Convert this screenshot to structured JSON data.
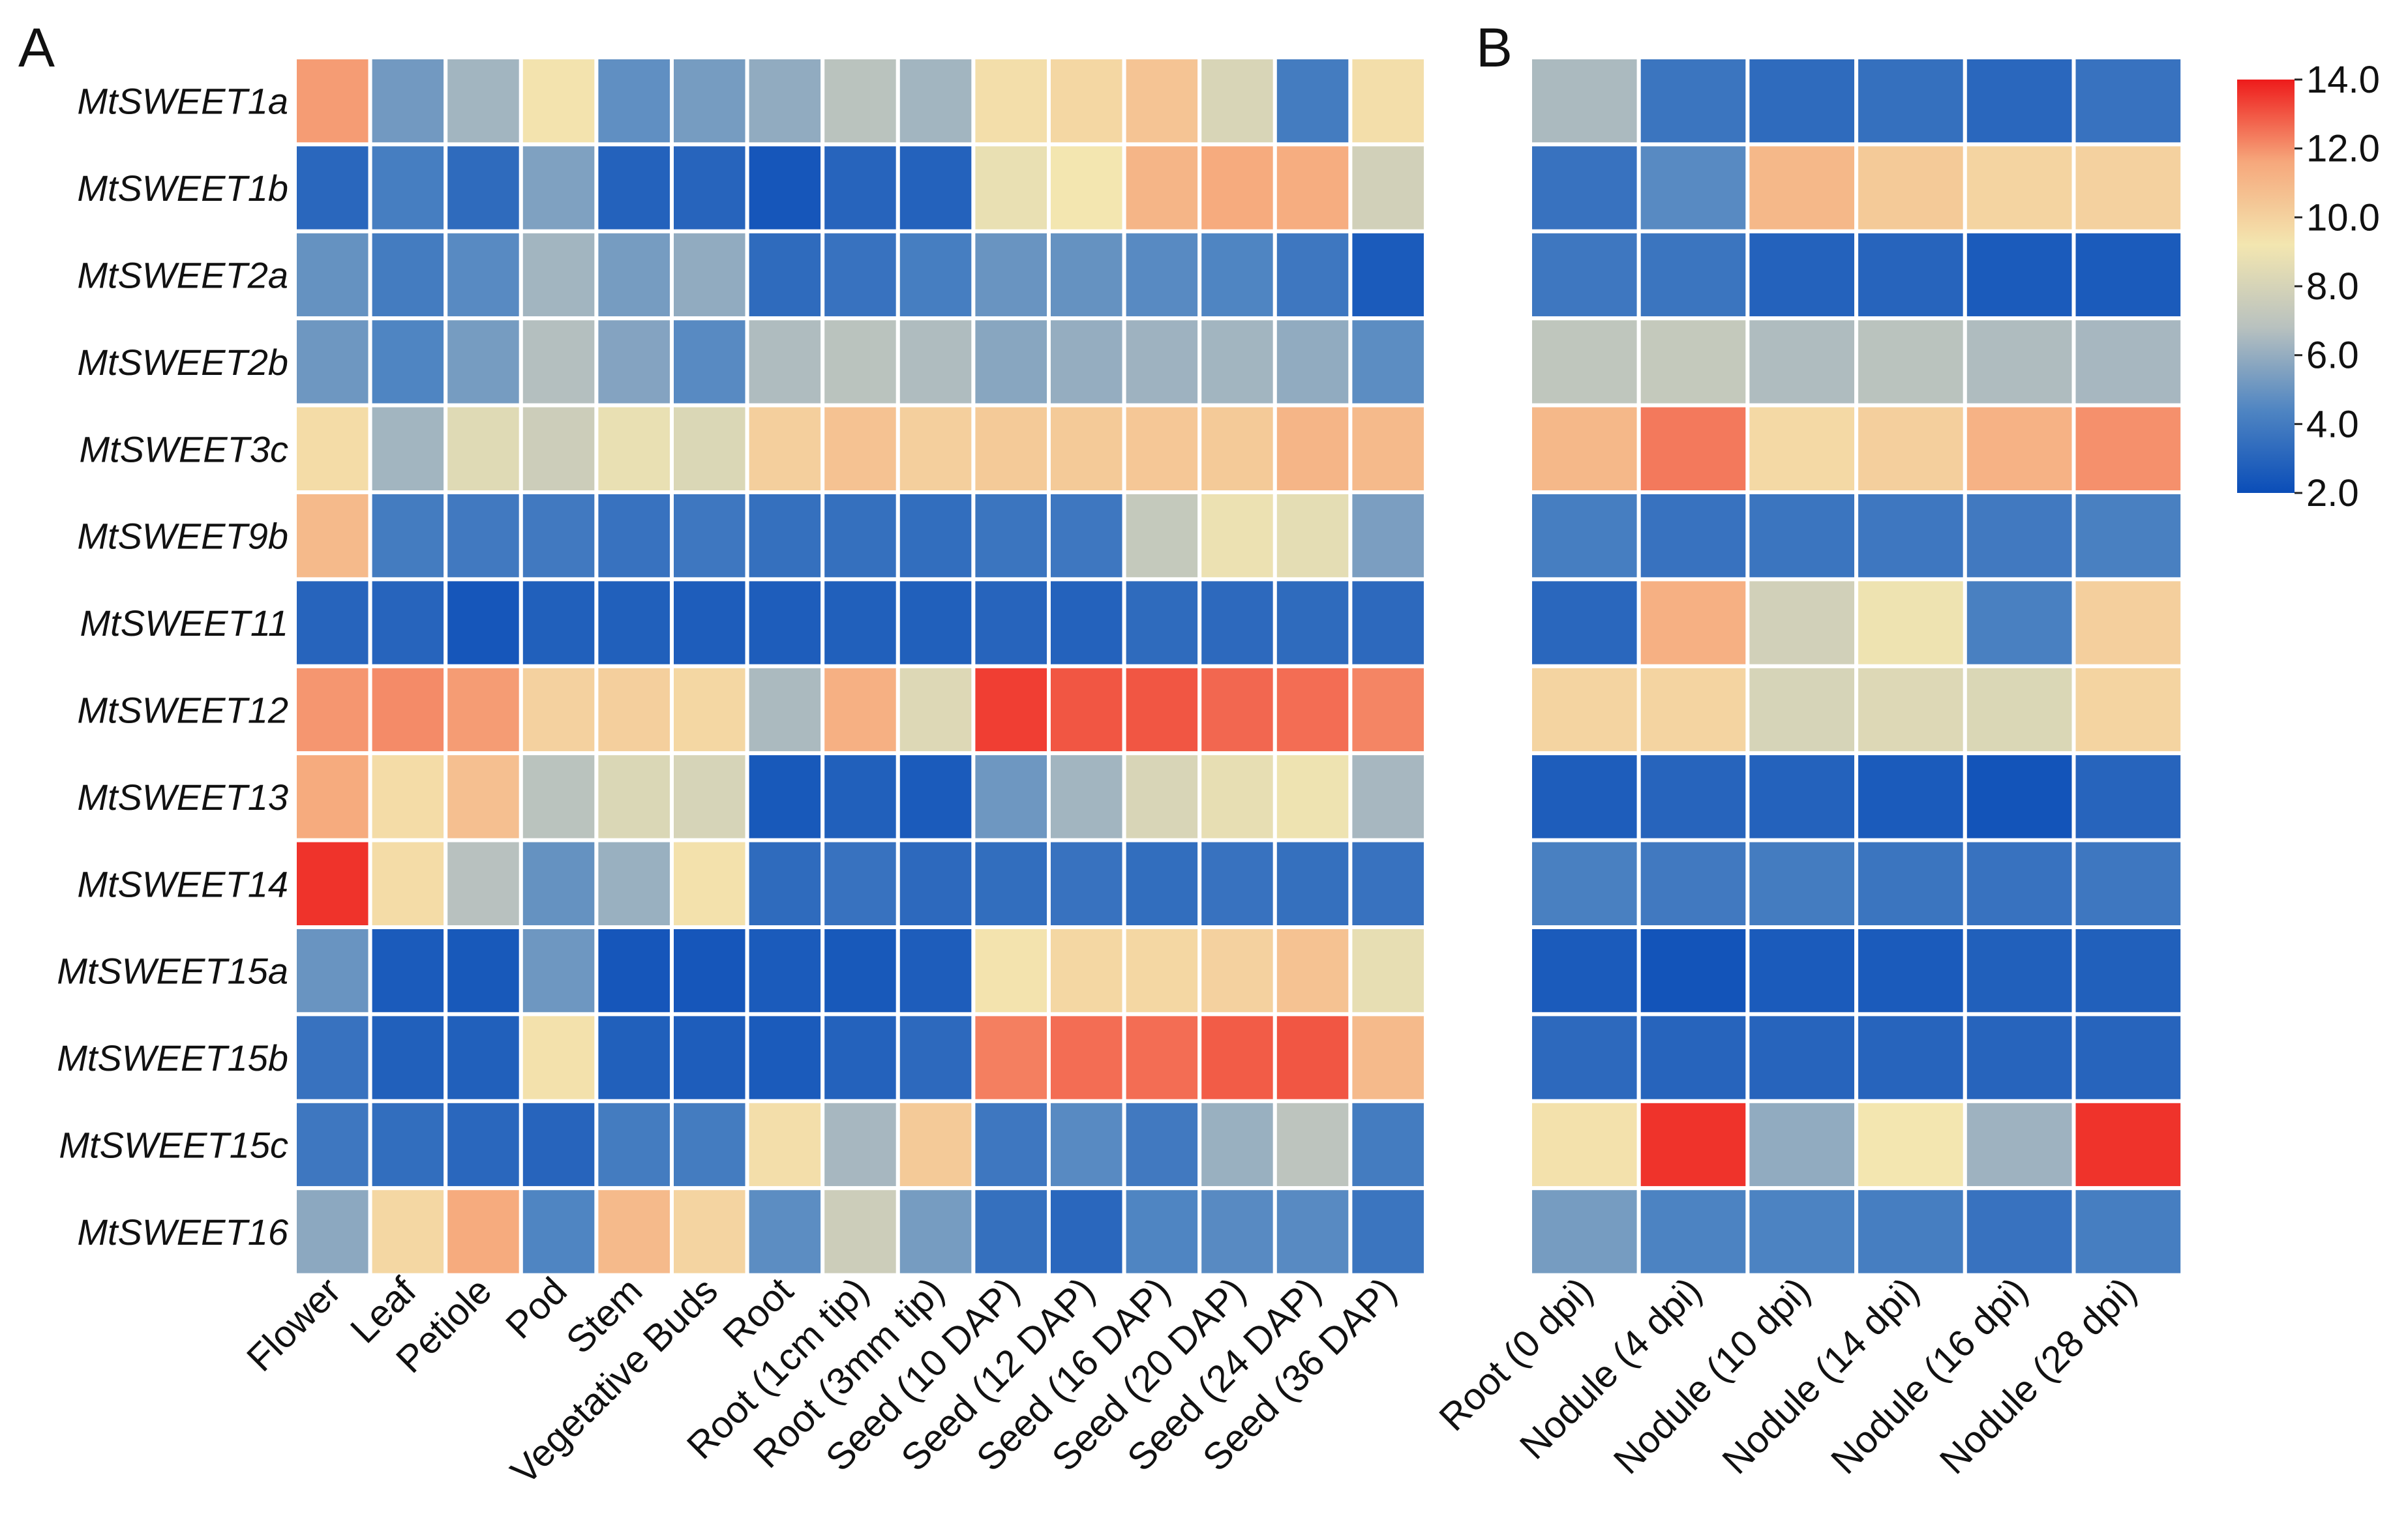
{
  "chart_data": [
    {
      "type": "heatmap",
      "panel": "A",
      "rows": [
        "MtSWEET1a",
        "MtSWEET1b",
        "MtSWEET2a",
        "MtSWEET2b",
        "MtSWEET3c",
        "MtSWEET9b",
        "MtSWEET11",
        "MtSWEET12",
        "MtSWEET13",
        "MtSWEET14",
        "MtSWEET15a",
        "MtSWEET15b",
        "MtSWEET15c",
        "MtSWEET16"
      ],
      "columns": [
        "Flower",
        "Leaf",
        "Petiole",
        "Pod",
        "Stem",
        "Vegetative Buds",
        "Root",
        "Root (1cm tip)",
        "Root (3mm tip)",
        "Seed (10 DAP)",
        "Seed (12 DAP)",
        "Seed (16 DAP)",
        "Seed (20 DAP)",
        "Seed (24 DAP)",
        "Seed (36 DAP)"
      ],
      "values": [
        [
          11.8,
          5.2,
          6.3,
          9.3,
          4.8,
          5.3,
          5.9,
          6.9,
          6.3,
          9.5,
          9.8,
          10.5,
          8.1,
          4.0,
          9.5
        ],
        [
          3.1,
          4.1,
          3.3,
          5.5,
          2.9,
          3.0,
          2.4,
          3.0,
          2.9,
          8.8,
          9.2,
          11.1,
          11.5,
          11.4,
          7.8
        ],
        [
          4.9,
          4.0,
          4.6,
          6.3,
          5.3,
          5.9,
          3.3,
          3.6,
          4.1,
          5.0,
          4.9,
          4.6,
          4.4,
          3.8,
          2.6
        ],
        [
          5.1,
          4.4,
          5.3,
          6.7,
          5.6,
          4.6,
          6.6,
          6.9,
          6.6,
          5.7,
          6.0,
          6.2,
          6.3,
          5.9,
          4.7
        ],
        [
          9.6,
          6.3,
          8.4,
          7.6,
          8.8,
          8.2,
          10.1,
          10.6,
          10.1,
          10.3,
          10.3,
          10.4,
          10.3,
          11.1,
          10.9
        ],
        [
          10.9,
          4.0,
          3.9,
          3.9,
          3.6,
          3.8,
          3.5,
          3.5,
          3.4,
          3.7,
          3.8,
          7.3,
          8.9,
          8.6,
          5.4
        ],
        [
          3.0,
          3.0,
          2.4,
          2.8,
          2.8,
          2.7,
          2.7,
          2.8,
          2.8,
          3.0,
          2.9,
          3.3,
          3.2,
          3.3,
          3.2
        ],
        [
          11.9,
          12.1,
          11.8,
          10.0,
          10.1,
          9.8,
          6.5,
          11.3,
          8.3,
          13.4,
          13.0,
          13.0,
          12.7,
          12.6,
          12.2
        ],
        [
          11.5,
          9.6,
          10.7,
          6.9,
          8.2,
          8.0,
          2.5,
          2.8,
          2.6,
          5.1,
          6.3,
          8.1,
          8.7,
          9.0,
          6.4
        ],
        [
          13.6,
          9.6,
          6.8,
          4.9,
          6.1,
          9.4,
          3.3,
          3.6,
          3.2,
          3.4,
          3.6,
          3.4,
          3.6,
          3.5,
          3.6
        ],
        [
          5.0,
          2.6,
          2.5,
          5.1,
          2.4,
          2.4,
          2.6,
          2.5,
          2.7,
          9.3,
          9.8,
          9.8,
          10.0,
          10.6,
          8.7
        ],
        [
          3.6,
          2.8,
          2.8,
          9.4,
          2.8,
          2.7,
          2.6,
          2.9,
          3.2,
          12.3,
          12.6,
          12.6,
          12.9,
          13.0,
          10.9
        ],
        [
          3.8,
          3.4,
          3.1,
          3.0,
          4.0,
          4.0,
          9.5,
          6.4,
          10.3,
          3.8,
          4.6,
          3.9,
          6.1,
          7.0,
          4.0
        ],
        [
          5.8,
          9.8,
          11.5,
          4.4,
          10.9,
          9.9,
          4.7,
          7.6,
          5.3,
          3.5,
          3.1,
          4.4,
          4.6,
          4.6,
          3.7
        ]
      ]
    },
    {
      "type": "heatmap",
      "panel": "B",
      "rows": [
        "MtSWEET1a",
        "MtSWEET1b",
        "MtSWEET2a",
        "MtSWEET2b",
        "MtSWEET3c",
        "MtSWEET9b",
        "MtSWEET11",
        "MtSWEET12",
        "MtSWEET13",
        "MtSWEET14",
        "MtSWEET15a",
        "MtSWEET15b",
        "MtSWEET15c",
        "MtSWEET16"
      ],
      "columns": [
        "Root (0 dpi)",
        "Nodule (4 dpi)",
        "Nodule (10 dpi)",
        "Nodule (14 dpi)",
        "Nodule (16 dpi)",
        "Nodule (28 dpi)"
      ],
      "values": [
        [
          6.5,
          3.7,
          3.3,
          3.5,
          3.1,
          3.6
        ],
        [
          3.6,
          4.6,
          11.0,
          10.3,
          9.9,
          10.0
        ],
        [
          3.8,
          3.7,
          2.9,
          3.0,
          2.6,
          2.6
        ],
        [
          7.1,
          7.3,
          6.6,
          6.9,
          6.6,
          6.4
        ],
        [
          11.0,
          12.4,
          9.7,
          10.1,
          11.2,
          12.0
        ],
        [
          4.1,
          3.6,
          3.7,
          3.8,
          3.9,
          4.2
        ],
        [
          3.1,
          11.3,
          7.8,
          9.0,
          4.2,
          10.1
        ],
        [
          9.9,
          9.9,
          8.0,
          8.3,
          8.2,
          9.9
        ],
        [
          2.7,
          3.0,
          2.9,
          2.6,
          2.3,
          3.0
        ],
        [
          4.2,
          3.9,
          4.0,
          3.7,
          3.6,
          3.8
        ],
        [
          2.6,
          2.3,
          2.6,
          2.6,
          2.8,
          2.8
        ],
        [
          3.2,
          3.0,
          3.0,
          3.0,
          3.0,
          3.0
        ],
        [
          9.4,
          13.6,
          5.9,
          9.2,
          6.2,
          13.6
        ],
        [
          5.3,
          4.3,
          4.3,
          4.1,
          3.6,
          4.1
        ]
      ]
    }
  ],
  "panels": {
    "a_label": "A",
    "b_label": "B"
  },
  "colorbar": {
    "min": 2.0,
    "max": 14.0,
    "ticks": [
      "14.0",
      "12.0",
      "10.0",
      "8.0",
      "6.0",
      "4.0",
      "2.0"
    ],
    "colors": [
      "#0a4db8",
      "#4f85c2",
      "#b8c1bf",
      "#f3e6b0",
      "#f6a87c",
      "#ee1b1b"
    ]
  }
}
